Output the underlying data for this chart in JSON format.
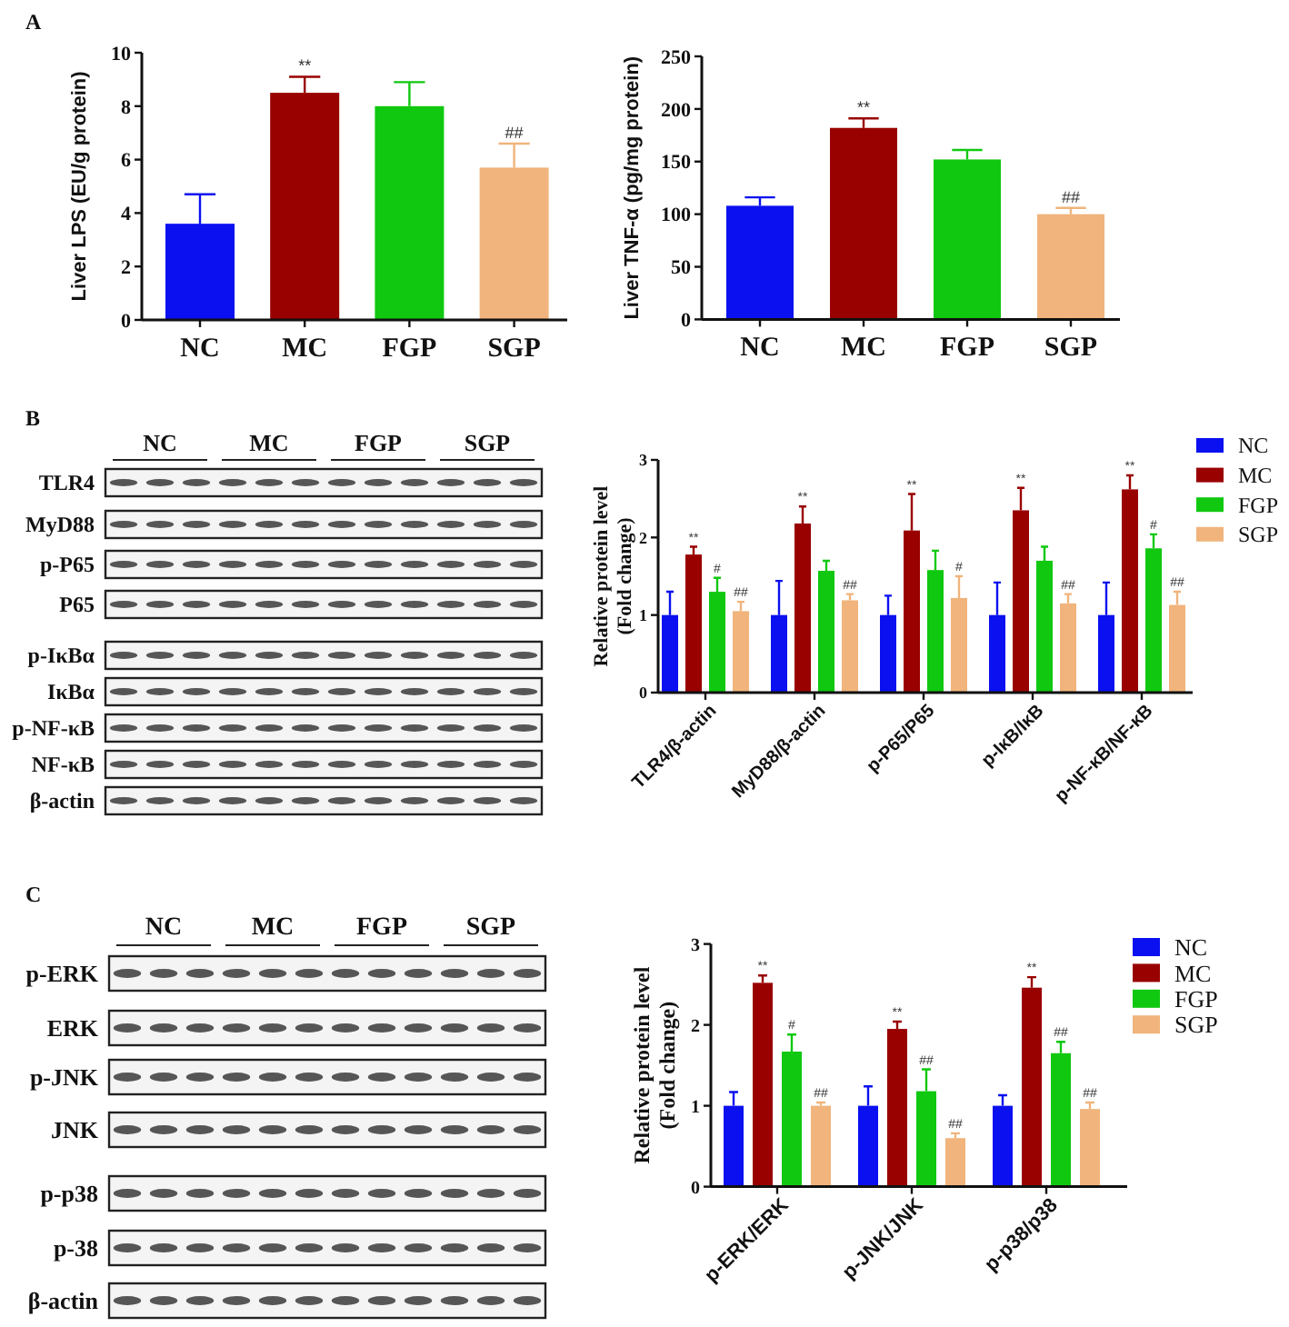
{
  "chart_data": [
    {
      "type": "bar",
      "annotations": [
        "A"
      ],
      "categories": [
        "NC",
        "MC",
        "FGP",
        "SGP"
      ],
      "values": [
        3.6,
        8.5,
        8.0,
        5.7
      ],
      "colors": [
        "#0a10f0",
        "#990000",
        "#10c810",
        "#f0b47c"
      ],
      "errors": [
        [
          3.6,
          4.7
        ],
        [
          8.5,
          9.1
        ],
        [
          8.0,
          8.9
        ],
        [
          5.7,
          6.6
        ]
      ],
      "value_labels": [
        null,
        "**",
        null,
        "##"
      ],
      "ylabel": "Liver LPS (EU/g protein)",
      "ylim": [
        0,
        10
      ],
      "yticks": [
        0,
        2,
        4,
        6,
        8,
        10
      ]
    },
    {
      "type": "bar",
      "categories": [
        "NC",
        "MC",
        "FGP",
        "SGP"
      ],
      "values": [
        108,
        182,
        152,
        100
      ],
      "colors": [
        "#0a10f0",
        "#990000",
        "#10c810",
        "#f0b47c"
      ],
      "errors": [
        [
          108,
          116
        ],
        [
          182,
          191
        ],
        [
          152,
          161
        ],
        [
          100,
          106
        ]
      ],
      "value_labels": [
        null,
        "**",
        null,
        "##"
      ],
      "ylabel": "Liver TNF-α (pg/mg protein)",
      "ylim": [
        0,
        250
      ],
      "yticks": [
        0,
        50,
        100,
        150,
        200,
        250
      ]
    },
    {
      "type": "other",
      "annotations": [
        "B"
      ],
      "categories": [
        "NC",
        "MC",
        "FGP",
        "SGP"
      ],
      "y_categories": [
        "TLR4",
        "MyD88",
        "p-P65",
        "P65",
        "p-IκBα",
        "IκBα",
        "p-NF-κB",
        "NF-κB",
        "β-actin"
      ]
    },
    {
      "type": "bar",
      "categories": [
        "TLR4/β-actin",
        "MyD88/β-actin",
        "p-P65/P65",
        "p-IκB/IκB",
        "p-NF-κB/NF-κB"
      ],
      "series": [
        {
          "name": "NC",
          "color": "#0a10f0",
          "values": [
            1,
            1,
            1,
            1,
            1
          ],
          "errors": [
            [
              1,
              1.3
            ],
            [
              1,
              1.44
            ],
            [
              1,
              1.25
            ],
            [
              1,
              1.42
            ],
            [
              1,
              1.42
            ]
          ]
        },
        {
          "name": "MC",
          "color": "#990000",
          "values": [
            1.78,
            2.18,
            2.09,
            2.35,
            2.62
          ],
          "errors": [
            [
              1.78,
              1.88
            ],
            [
              2.18,
              2.4
            ],
            [
              2.09,
              2.56
            ],
            [
              2.35,
              2.64
            ],
            [
              2.62,
              2.8
            ]
          ],
          "value_labels": [
            "**",
            "**",
            "**",
            "**",
            "**"
          ]
        },
        {
          "name": "FGP",
          "color": "#10c810",
          "values": [
            1.3,
            1.57,
            1.58,
            1.7,
            1.86
          ],
          "errors": [
            [
              1.3,
              1.48
            ],
            [
              1.57,
              1.7
            ],
            [
              1.58,
              1.83
            ],
            [
              1.7,
              1.88
            ],
            [
              1.86,
              2.04
            ]
          ],
          "value_labels": [
            "#",
            null,
            null,
            null,
            "#"
          ]
        },
        {
          "name": "SGP",
          "color": "#f0b47c",
          "values": [
            1.05,
            1.19,
            1.22,
            1.15,
            1.13
          ],
          "errors": [
            [
              1.05,
              1.17
            ],
            [
              1.19,
              1.27
            ],
            [
              1.22,
              1.5
            ],
            [
              1.15,
              1.27
            ],
            [
              1.13,
              1.3
            ]
          ],
          "value_labels": [
            "##",
            "##",
            "#",
            "##",
            "##"
          ]
        }
      ],
      "ylabel": "Relative protein level\n(Fold change)",
      "ylim": [
        0,
        3
      ],
      "yticks": [
        0,
        1,
        2,
        3
      ],
      "legend": "top right"
    },
    {
      "type": "other",
      "annotations": [
        "C"
      ],
      "categories": [
        "NC",
        "MC",
        "FGP",
        "SGP"
      ],
      "y_categories": [
        "p-ERK",
        "ERK",
        "p-JNK",
        "JNK",
        "p-p38",
        "p-38",
        "β-actin"
      ]
    },
    {
      "type": "bar",
      "categories": [
        "p-ERK/ERK",
        "p-JNK/JNK",
        "p-p38/p38"
      ],
      "series": [
        {
          "name": "NC",
          "color": "#0a10f0",
          "values": [
            1,
            1,
            1
          ],
          "errors": [
            [
              1,
              1.17
            ],
            [
              1,
              1.24
            ],
            [
              1,
              1.13
            ]
          ]
        },
        {
          "name": "MC",
          "color": "#990000",
          "values": [
            2.52,
            1.95,
            2.46
          ],
          "errors": [
            [
              2.52,
              2.61
            ],
            [
              1.95,
              2.04
            ],
            [
              2.46,
              2.59
            ]
          ],
          "value_labels": [
            "**",
            "**",
            "**"
          ]
        },
        {
          "name": "FGP",
          "color": "#10c810",
          "values": [
            1.67,
            1.18,
            1.65
          ],
          "errors": [
            [
              1.67,
              1.88
            ],
            [
              1.18,
              1.45
            ],
            [
              1.65,
              1.79
            ]
          ],
          "value_labels": [
            "#",
            "##",
            "##"
          ]
        },
        {
          "name": "SGP",
          "color": "#f0b47c",
          "values": [
            1.0,
            0.6,
            0.96
          ],
          "errors": [
            [
              1.0,
              1.04
            ],
            [
              0.6,
              0.66
            ],
            [
              0.96,
              1.04
            ]
          ],
          "value_labels": [
            "##",
            "##",
            "##"
          ]
        }
      ],
      "ylabel": "Relative protein level\n(Fold change)",
      "ylim": [
        0,
        3
      ],
      "yticks": [
        0,
        1,
        2,
        3
      ],
      "legend": "top right"
    }
  ]
}
